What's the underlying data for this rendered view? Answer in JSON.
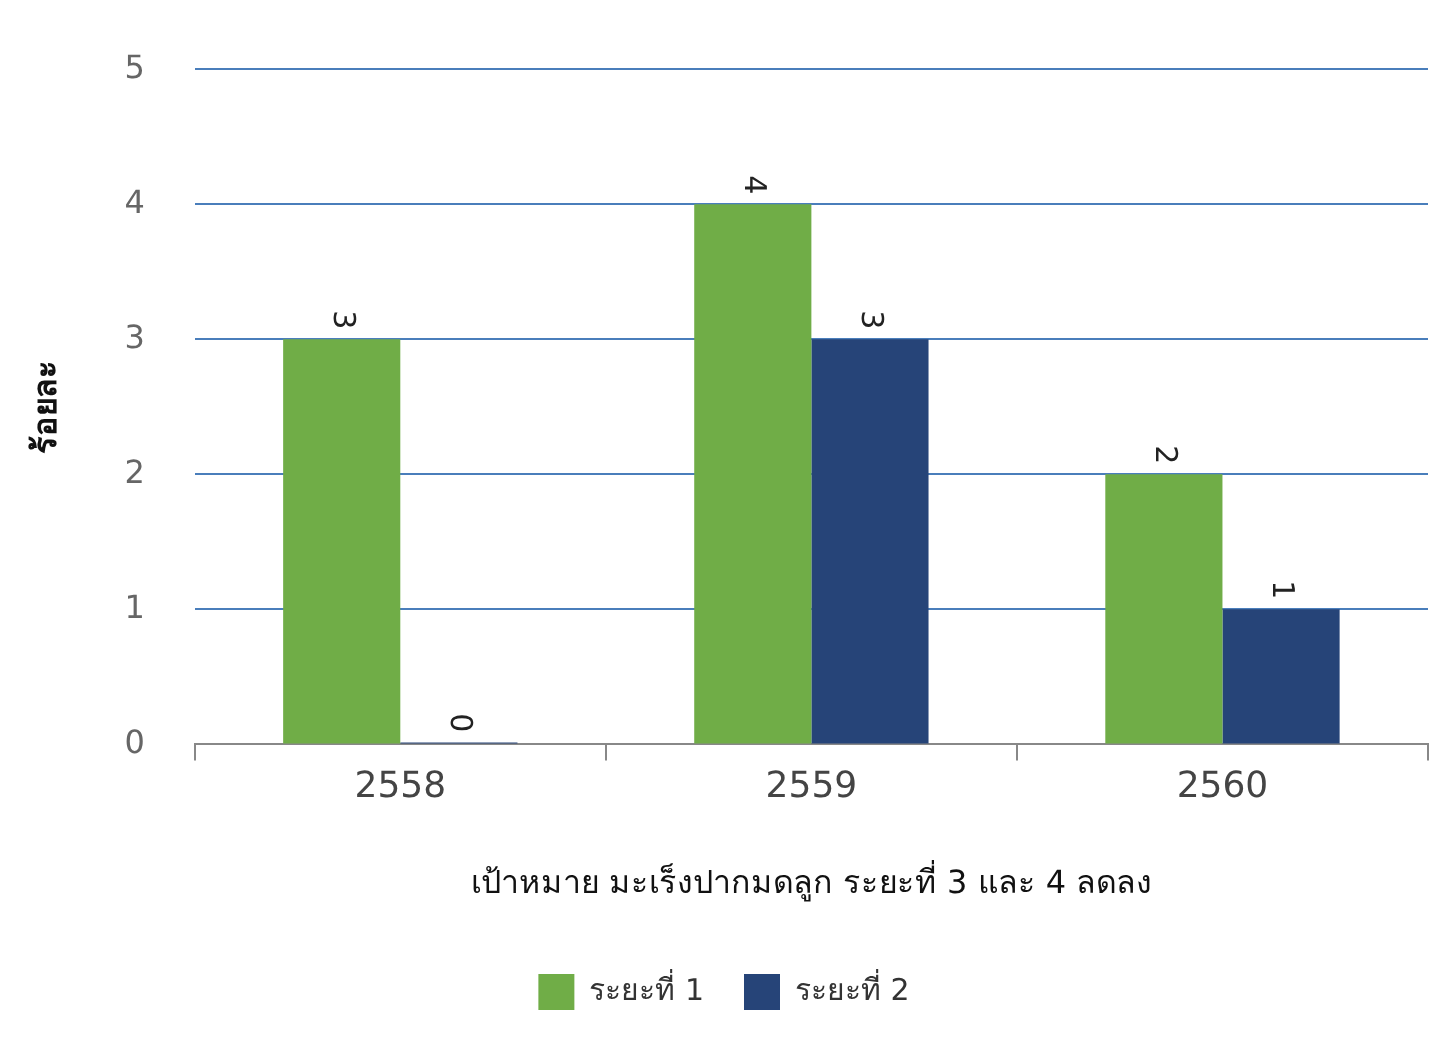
{
  "chart_data": {
    "type": "bar",
    "xlabel": "เป้าหมาย มะเร็งปากมดลูก ระยะที่ 3 และ 4 ลดลง",
    "ylabel": "ร้อยละ",
    "categories": [
      "2558",
      "2559",
      "2560"
    ],
    "series": [
      {
        "name": "ระยะที่ 1",
        "color": "#70ad47",
        "values": [
          3,
          4,
          2
        ]
      },
      {
        "name": "ระยะที่ 2",
        "color": "#264478",
        "values": [
          0,
          3,
          1
        ]
      }
    ],
    "ylim": [
      0,
      5
    ],
    "yticks": [
      0,
      1,
      2,
      3,
      4,
      5
    ],
    "grid": "y",
    "legend": "bottom",
    "data_labels": true
  }
}
